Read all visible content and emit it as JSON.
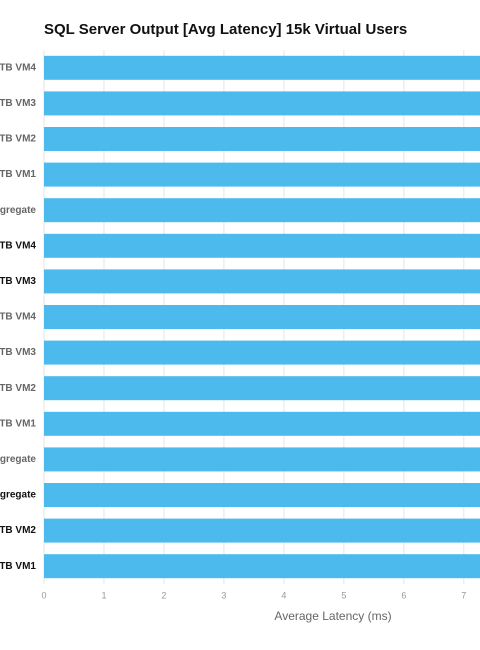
{
  "chart_data": {
    "type": "bar",
    "orientation": "horizontal",
    "title": "SQL Server Output [Avg Latency] 15k Virtual Users",
    "x_label": "Average Latency (ms)",
    "categories": [
      "TB VM4",
      "TB VM3",
      "TB VM2",
      "TB VM1",
      "gregate",
      "TB VM4",
      "TB VM3",
      "TB VM4",
      "TB VM3",
      "TB VM2",
      "TB VM1",
      "gregate",
      "gregate",
      "TB VM2",
      "TB VM1"
    ],
    "label_colors": [
      "#666666",
      "#666666",
      "#666666",
      "#666666",
      "#666666",
      "#111111",
      "#111111",
      "#666666",
      "#666666",
      "#666666",
      "#666666",
      "#666666",
      "#111111",
      "#111111",
      "#111111"
    ],
    "values": [
      7.27,
      7.27,
      7.27,
      7.27,
      7.27,
      7.27,
      7.27,
      7.27,
      7.27,
      7.27,
      7.27,
      7.27,
      7.27,
      7.27,
      7.27
    ],
    "color": "#4dbaed",
    "xlim": [
      0,
      7.27
    ],
    "xticks": [
      0,
      1,
      2,
      3,
      4,
      5,
      6,
      7
    ],
    "grid": true
  }
}
